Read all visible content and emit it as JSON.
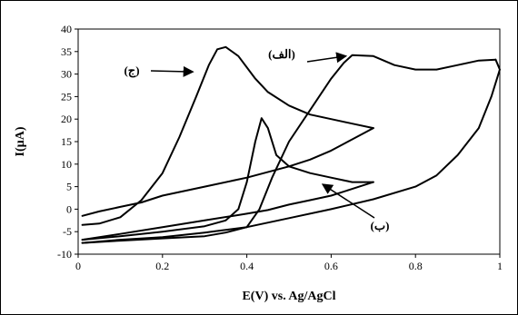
{
  "chart_data": {
    "type": "line",
    "title": "",
    "xlabel": "E(V)  vs. Ag/AgCl",
    "ylabel": "I(µA)",
    "xlim": [
      0,
      1
    ],
    "ylim": [
      -10,
      40
    ],
    "x_ticks": [
      "0",
      "0.2",
      "0.4",
      "0.6",
      "0.8",
      "1"
    ],
    "y_ticks": [
      "40",
      "35",
      "30",
      "25",
      "20",
      "15",
      "10",
      "5",
      "0",
      "-5",
      "-10"
    ],
    "grid": false,
    "legend": "none",
    "series": [
      {
        "label": "(الف)",
        "forward": [
          [
            0.01,
            -7.5
          ],
          [
            0.1,
            -7.0
          ],
          [
            0.2,
            -6.5
          ],
          [
            0.3,
            -6.0
          ],
          [
            0.35,
            -5.2
          ],
          [
            0.4,
            -4.0
          ],
          [
            0.43,
            0
          ],
          [
            0.46,
            7
          ],
          [
            0.5,
            15
          ],
          [
            0.55,
            22
          ],
          [
            0.6,
            29
          ],
          [
            0.63,
            32.5
          ],
          [
            0.65,
            34.2
          ],
          [
            0.7,
            34
          ],
          [
            0.75,
            32
          ],
          [
            0.8,
            31
          ],
          [
            0.85,
            31
          ],
          [
            0.9,
            32
          ],
          [
            0.95,
            33
          ],
          [
            0.99,
            33.2
          ]
        ],
        "reverse": [
          [
            0.99,
            33.2
          ],
          [
            1.0,
            31
          ],
          [
            0.98,
            25
          ],
          [
            0.95,
            18
          ],
          [
            0.9,
            12
          ],
          [
            0.85,
            7.5
          ],
          [
            0.8,
            5
          ],
          [
            0.7,
            2.2
          ],
          [
            0.6,
            0
          ],
          [
            0.5,
            -2
          ],
          [
            0.4,
            -4
          ],
          [
            0.3,
            -5.2
          ],
          [
            0.2,
            -6.2
          ],
          [
            0.1,
            -6.8
          ],
          [
            0.01,
            -7.5
          ]
        ],
        "annotation_arrow_to": [
          0.635,
          34
        ]
      },
      {
        "label": "(ب)",
        "forward": [
          [
            0.01,
            -6.8
          ],
          [
            0.1,
            -6.0
          ],
          [
            0.2,
            -5.0
          ],
          [
            0.3,
            -3.8
          ],
          [
            0.35,
            -2.5
          ],
          [
            0.38,
            0
          ],
          [
            0.4,
            6
          ],
          [
            0.42,
            15
          ],
          [
            0.435,
            20.2
          ],
          [
            0.45,
            18
          ],
          [
            0.47,
            12
          ],
          [
            0.5,
            9.5
          ],
          [
            0.55,
            8
          ],
          [
            0.6,
            7
          ],
          [
            0.65,
            6
          ],
          [
            0.7,
            6
          ]
        ],
        "reverse": [
          [
            0.7,
            6
          ],
          [
            0.65,
            4.5
          ],
          [
            0.6,
            3
          ],
          [
            0.55,
            2
          ],
          [
            0.5,
            1
          ],
          [
            0.45,
            -0.2
          ],
          [
            0.4,
            -1
          ],
          [
            0.3,
            -2.5
          ],
          [
            0.2,
            -4
          ],
          [
            0.1,
            -5.5
          ],
          [
            0.01,
            -6.8
          ]
        ],
        "annotation_arrow_to": [
          0.58,
          5.5
        ]
      },
      {
        "label": "(ج)",
        "forward": [
          [
            0.01,
            -3.5
          ],
          [
            0.05,
            -3.2
          ],
          [
            0.1,
            -1.8
          ],
          [
            0.15,
            2
          ],
          [
            0.2,
            8
          ],
          [
            0.24,
            16
          ],
          [
            0.28,
            25
          ],
          [
            0.31,
            32
          ],
          [
            0.33,
            35.5
          ],
          [
            0.35,
            36
          ],
          [
            0.38,
            34
          ],
          [
            0.42,
            29
          ],
          [
            0.45,
            26
          ],
          [
            0.5,
            23
          ],
          [
            0.55,
            21
          ],
          [
            0.6,
            20
          ],
          [
            0.65,
            19
          ],
          [
            0.7,
            18
          ]
        ],
        "reverse": [
          [
            0.7,
            18
          ],
          [
            0.65,
            15.5
          ],
          [
            0.6,
            13
          ],
          [
            0.55,
            11
          ],
          [
            0.5,
            9.5
          ],
          [
            0.4,
            7
          ],
          [
            0.3,
            5
          ],
          [
            0.2,
            3
          ],
          [
            0.15,
            1.5
          ],
          [
            0.1,
            0.5
          ],
          [
            0.05,
            -0.5
          ],
          [
            0.01,
            -1.5
          ]
        ],
        "annotation_arrow_to": [
          0.272,
          30.5
        ]
      }
    ]
  }
}
